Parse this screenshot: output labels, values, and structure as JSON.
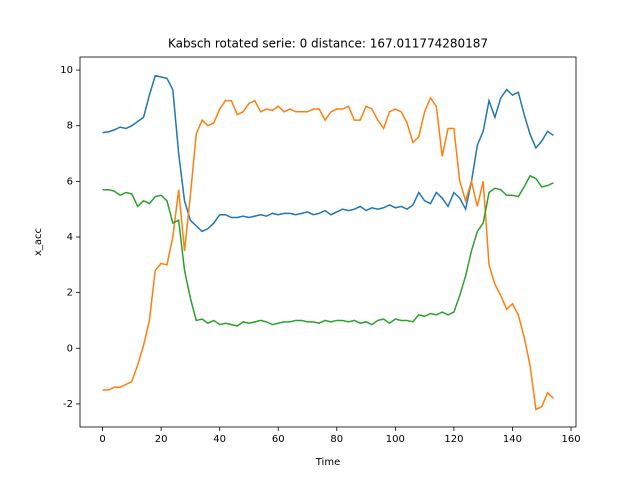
{
  "chart_data": {
    "type": "line",
    "title": "Kabsch rotated serie: 0  distance: 167.011774280187",
    "xlabel": "Time",
    "ylabel": "x_acc",
    "x": [
      0,
      2,
      4,
      6,
      8,
      10,
      12,
      14,
      16,
      18,
      20,
      22,
      24,
      26,
      28,
      30,
      32,
      34,
      36,
      38,
      40,
      42,
      44,
      46,
      48,
      50,
      52,
      54,
      56,
      58,
      60,
      62,
      64,
      66,
      68,
      70,
      72,
      74,
      76,
      78,
      80,
      82,
      84,
      86,
      88,
      90,
      92,
      94,
      96,
      98,
      100,
      102,
      104,
      106,
      108,
      110,
      112,
      114,
      116,
      118,
      120,
      122,
      124,
      126,
      128,
      130,
      132,
      134,
      136,
      138,
      140,
      142,
      144,
      146,
      148,
      150,
      152,
      154
    ],
    "series": [
      {
        "color": "#1f77b4",
        "values": [
          7.75,
          7.78,
          7.85,
          7.95,
          7.9,
          8.0,
          8.15,
          8.3,
          9.1,
          9.8,
          9.75,
          9.7,
          9.3,
          7.0,
          5.3,
          4.6,
          4.4,
          4.2,
          4.3,
          4.5,
          4.8,
          4.8,
          4.7,
          4.7,
          4.75,
          4.7,
          4.75,
          4.8,
          4.75,
          4.85,
          4.8,
          4.85,
          4.85,
          4.8,
          4.85,
          4.9,
          4.8,
          4.85,
          4.95,
          4.8,
          4.9,
          5.0,
          4.95,
          5.0,
          5.1,
          4.95,
          5.05,
          5.0,
          5.05,
          5.15,
          5.05,
          5.1,
          5.0,
          5.15,
          5.6,
          5.3,
          5.2,
          5.6,
          5.4,
          5.1,
          5.6,
          5.4,
          5.0,
          6.0,
          7.3,
          7.8,
          8.9,
          8.3,
          9.0,
          9.3,
          9.1,
          9.2,
          8.4,
          7.7,
          7.2,
          7.45,
          7.8,
          7.65
        ]
      },
      {
        "color": "#ff7f0e",
        "values": [
          -1.5,
          -1.5,
          -1.4,
          -1.4,
          -1.3,
          -1.2,
          -0.6,
          0.1,
          1.0,
          2.8,
          3.05,
          3.0,
          4.0,
          5.7,
          3.5,
          5.5,
          7.7,
          8.2,
          8.0,
          8.1,
          8.6,
          8.9,
          8.9,
          8.4,
          8.5,
          8.8,
          8.9,
          8.5,
          8.6,
          8.55,
          8.7,
          8.5,
          8.6,
          8.5,
          8.5,
          8.5,
          8.6,
          8.6,
          8.2,
          8.5,
          8.6,
          8.6,
          8.7,
          8.2,
          8.2,
          8.7,
          8.6,
          8.2,
          7.9,
          8.5,
          8.6,
          8.5,
          8.1,
          7.4,
          7.6,
          8.5,
          9.0,
          8.7,
          6.9,
          7.9,
          7.9,
          6.0,
          5.3,
          6.0,
          5.1,
          6.0,
          3.0,
          2.3,
          1.9,
          1.4,
          1.6,
          1.2,
          0.4,
          -0.6,
          -2.2,
          -2.1,
          -1.6,
          -1.8
        ]
      },
      {
        "color": "#2ca02c",
        "values": [
          5.7,
          5.7,
          5.65,
          5.5,
          5.6,
          5.55,
          5.1,
          5.3,
          5.2,
          5.45,
          5.5,
          5.3,
          4.5,
          4.6,
          2.8,
          1.8,
          1.0,
          1.05,
          0.9,
          1.0,
          0.85,
          0.9,
          0.85,
          0.8,
          0.95,
          0.9,
          0.95,
          1.0,
          0.95,
          0.85,
          0.9,
          0.95,
          0.95,
          1.0,
          1.0,
          0.95,
          0.95,
          0.9,
          1.0,
          0.95,
          1.0,
          1.0,
          0.95,
          1.0,
          0.9,
          0.95,
          0.85,
          1.0,
          1.05,
          0.9,
          1.05,
          1.0,
          1.0,
          0.95,
          1.2,
          1.15,
          1.25,
          1.2,
          1.3,
          1.2,
          1.3,
          1.9,
          2.6,
          3.5,
          4.2,
          4.5,
          5.6,
          5.75,
          5.7,
          5.5,
          5.5,
          5.45,
          5.8,
          6.2,
          6.1,
          5.8,
          5.85,
          5.95
        ]
      }
    ],
    "xlim": [
      -7.7,
      161.7
    ],
    "ylim": [
      -2.83,
      10.47
    ],
    "xticks": [
      0,
      20,
      40,
      60,
      80,
      100,
      120,
      140,
      160
    ],
    "yticks": [
      -2,
      0,
      2,
      4,
      6,
      8,
      10
    ]
  }
}
